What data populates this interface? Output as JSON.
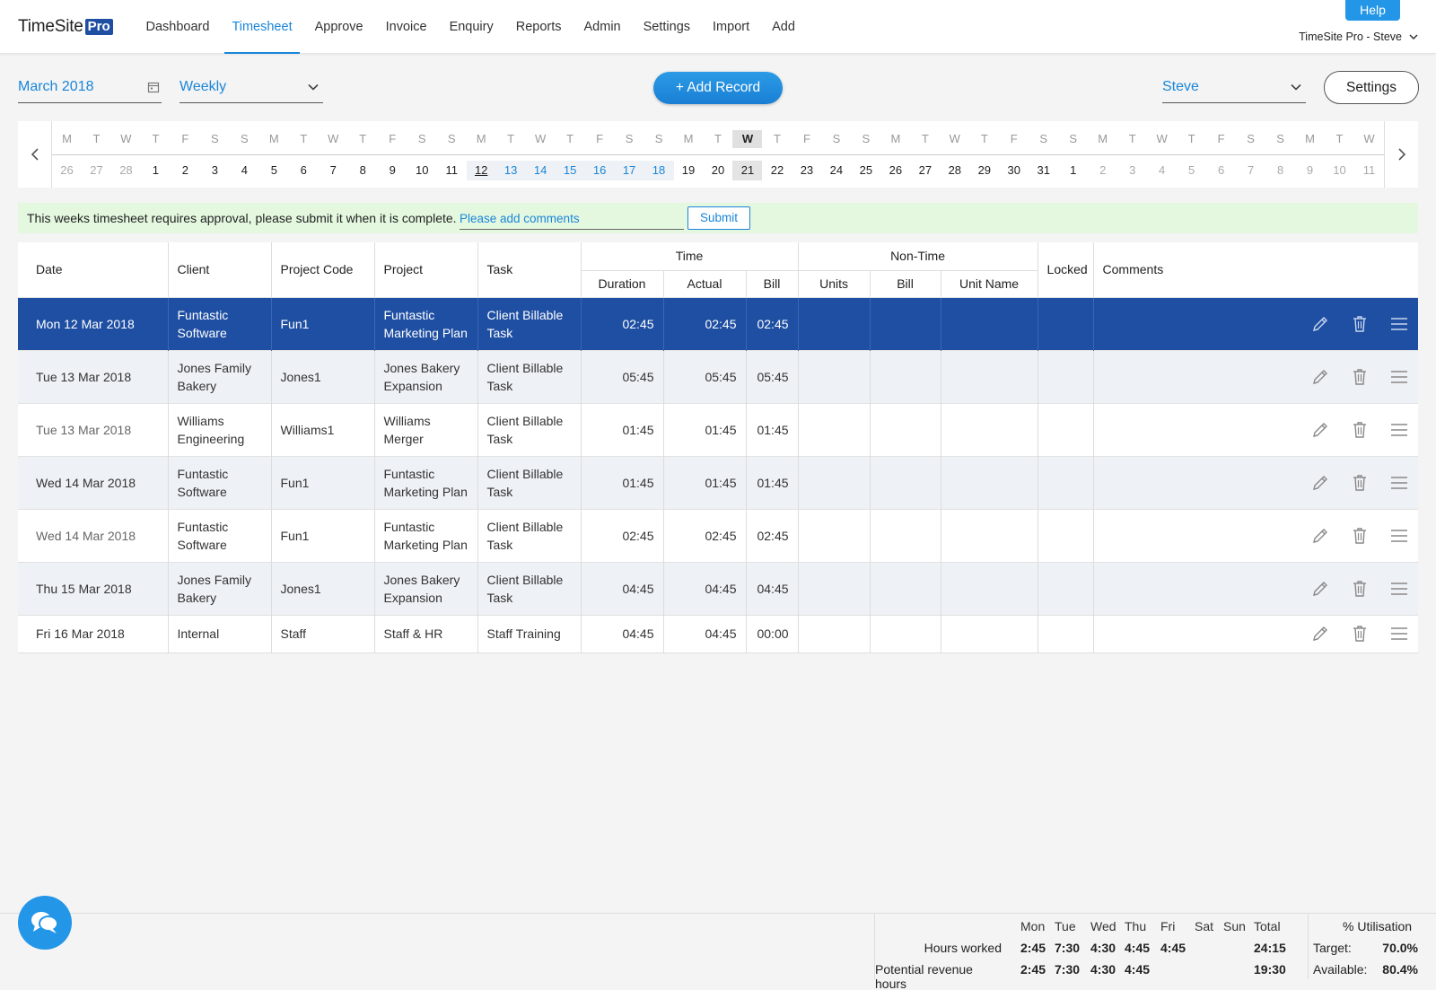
{
  "app": {
    "logo_text": "TimeSite",
    "logo_badge": "Pro",
    "help": "Help",
    "user_menu": "TimeSite Pro - Steve"
  },
  "nav": [
    "Dashboard",
    "Timesheet",
    "Approve",
    "Invoice",
    "Enquiry",
    "Reports",
    "Admin",
    "Settings",
    "Import",
    "Add"
  ],
  "nav_active": "Timesheet",
  "controls": {
    "month": "March 2018",
    "period": "Weekly",
    "add_record": "+ Add Record",
    "user": "Steve",
    "settings": "Settings"
  },
  "calendar": {
    "dows": [
      "M",
      "T",
      "W",
      "T",
      "F",
      "S",
      "S",
      "M",
      "T",
      "W",
      "T",
      "F",
      "S",
      "S",
      "M",
      "T",
      "W",
      "T",
      "F",
      "S",
      "S",
      "M",
      "T",
      "W",
      "T",
      "F",
      "S",
      "S",
      "M",
      "T",
      "W",
      "T",
      "F",
      "S",
      "S",
      "M",
      "T",
      "W",
      "T",
      "F",
      "S",
      "S",
      "M",
      "T",
      "W"
    ],
    "days": [
      "26",
      "27",
      "28",
      "1",
      "2",
      "3",
      "4",
      "5",
      "6",
      "7",
      "8",
      "9",
      "10",
      "11",
      "12",
      "13",
      "14",
      "15",
      "16",
      "17",
      "18",
      "19",
      "20",
      "21",
      "22",
      "23",
      "24",
      "25",
      "26",
      "27",
      "28",
      "29",
      "30",
      "31",
      "1",
      "2",
      "3",
      "4",
      "5",
      "6",
      "7",
      "8",
      "9",
      "10",
      "11"
    ],
    "muted_indices": [
      0,
      1,
      2,
      35,
      36,
      37,
      38,
      39,
      40,
      41,
      42,
      43,
      44
    ],
    "selected_indices": [
      14,
      15,
      16,
      17,
      18,
      19,
      20
    ],
    "underline_index": 14,
    "today_index": 23
  },
  "approval": {
    "message": "This weeks timesheet requires approval, please submit it when it is complete.",
    "comment_placeholder": "Please add comments",
    "submit": "Submit"
  },
  "table": {
    "headers": {
      "date": "Date",
      "client": "Client",
      "project_code": "Project Code",
      "project": "Project",
      "task": "Task",
      "time": "Time",
      "duration": "Duration",
      "actual": "Actual",
      "bill": "Bill",
      "non_time": "Non-Time",
      "units": "Units",
      "nt_bill": "Bill",
      "unit_name": "Unit Name",
      "locked": "Locked",
      "comments": "Comments"
    },
    "rows": [
      {
        "date": "Mon 12 Mar 2018",
        "client": "Funtastic Software",
        "code": "Fun1",
        "project": "Funtastic Marketing Plan",
        "task": "Client Billable Task",
        "duration": "02:45",
        "actual": "02:45",
        "bill": "02:45"
      },
      {
        "date": "Tue 13 Mar 2018",
        "client": "Jones Family Bakery",
        "code": "Jones1",
        "project": "Jones Bakery Expansion",
        "task": "Client Billable Task",
        "duration": "05:45",
        "actual": "05:45",
        "bill": "05:45"
      },
      {
        "date": "Tue 13 Mar 2018",
        "client": "Williams Engineering",
        "code": "Williams1",
        "project": "Williams Merger",
        "task": "Client Billable Task",
        "duration": "01:45",
        "actual": "01:45",
        "bill": "01:45"
      },
      {
        "date": "Wed 14 Mar 2018",
        "client": "Funtastic Software",
        "code": "Fun1",
        "project": "Funtastic Marketing Plan",
        "task": "Client Billable Task",
        "duration": "01:45",
        "actual": "01:45",
        "bill": "01:45"
      },
      {
        "date": "Wed 14 Mar 2018",
        "client": "Funtastic Software",
        "code": "Fun1",
        "project": "Funtastic Marketing Plan",
        "task": "Client Billable Task",
        "duration": "02:45",
        "actual": "02:45",
        "bill": "02:45"
      },
      {
        "date": "Thu 15 Mar 2018",
        "client": "Jones Family Bakery",
        "code": "Jones1",
        "project": "Jones Bakery Expansion",
        "task": "Client Billable Task",
        "duration": "04:45",
        "actual": "04:45",
        "bill": "04:45"
      },
      {
        "date": "Fri 16 Mar 2018",
        "client": "Internal",
        "code": "Staff",
        "project": "Staff & HR",
        "task": "Staff Training",
        "duration": "04:45",
        "actual": "04:45",
        "bill": "00:00"
      }
    ]
  },
  "summary": {
    "days": [
      "Mon",
      "Tue",
      "Wed",
      "Thu",
      "Fri",
      "Sat",
      "Sun",
      "Total"
    ],
    "hours_worked_label": "Hours worked",
    "hours_worked": [
      "2:45",
      "7:30",
      "4:30",
      "4:45",
      "4:45",
      "",
      "",
      "24:15"
    ],
    "revenue_label": "Potential revenue hours",
    "revenue": [
      "2:45",
      "7:30",
      "4:30",
      "4:45",
      "",
      "",
      "",
      "19:30"
    ],
    "util_title": "% Utilisation",
    "target_label": "Target:",
    "target": "70.0%",
    "available_label": "Available:",
    "available": "80.4%"
  },
  "colors": {
    "brand": "#1f4fa3",
    "accent": "#1a86d8",
    "selected_row": "#1f4fa3",
    "approval_bg": "#e4f8e0"
  }
}
